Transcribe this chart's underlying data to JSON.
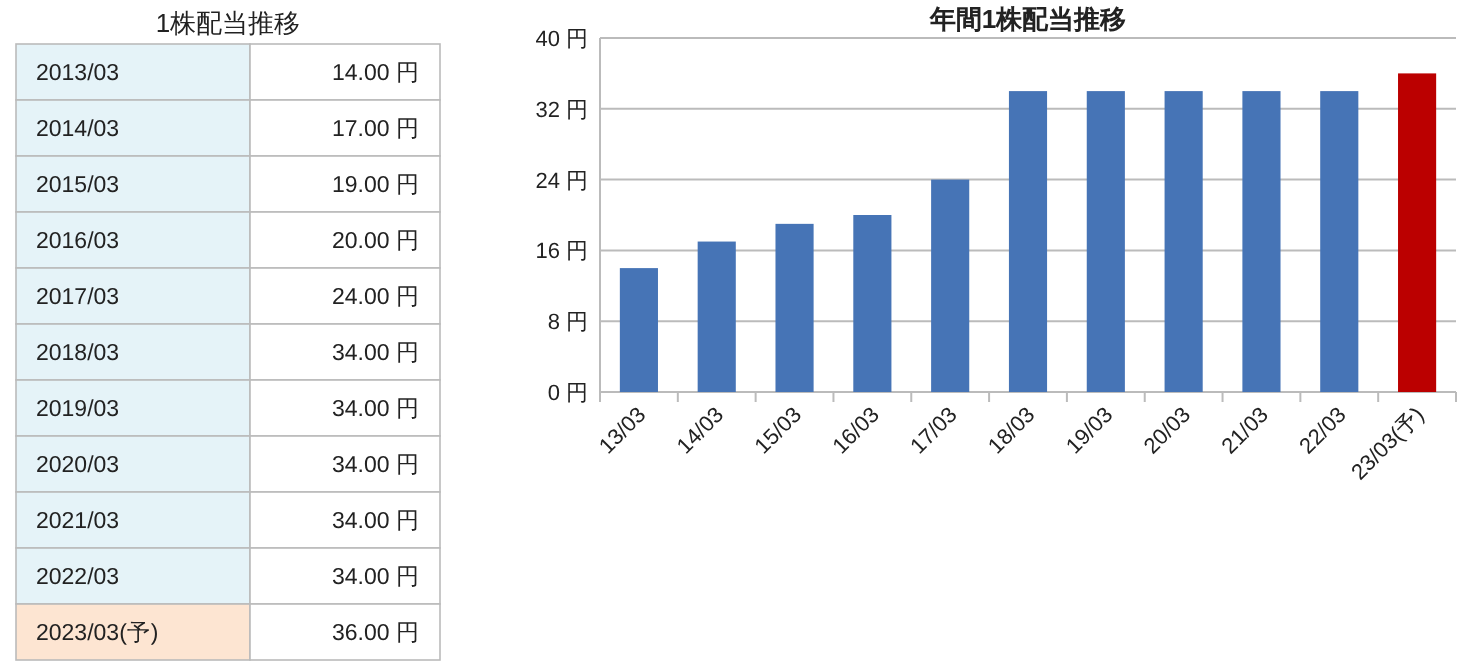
{
  "chart_data": [
    {
      "type": "other",
      "title": "1株配当推移",
      "categories": [
        "2013/03",
        "2014/03",
        "2015/03",
        "2016/03",
        "2017/03",
        "2018/03",
        "2019/03",
        "2020/03",
        "2021/03",
        "2022/03",
        "2023/03(予)"
      ],
      "values": [
        14,
        17,
        19,
        20,
        24,
        34,
        34,
        34,
        34,
        34,
        36
      ],
      "value_labels": [
        "14.00 円",
        "17.00 円",
        "19.00 円",
        "20.00 円",
        "24.00 円",
        "34.00 円",
        "34.00 円",
        "34.00 円",
        "34.00 円",
        "34.00 円",
        "36.00 円"
      ]
    },
    {
      "type": "bar",
      "title": "年間1株配当推移",
      "categories": [
        "13/03",
        "14/03",
        "15/03",
        "16/03",
        "17/03",
        "18/03",
        "19/03",
        "20/03",
        "21/03",
        "22/03",
        "23/03(予)"
      ],
      "values": [
        14,
        17,
        19,
        20,
        24,
        34,
        34,
        34,
        34,
        34,
        36
      ],
      "colors": [
        "#4674b6",
        "#4674b6",
        "#4674b6",
        "#4674b6",
        "#4674b6",
        "#4674b6",
        "#4674b6",
        "#4674b6",
        "#4674b6",
        "#4674b6",
        "#bb0000"
      ],
      "ylim": [
        0,
        40
      ],
      "yticks": [
        {
          "value": 0,
          "label": "0 円"
        },
        {
          "value": 8,
          "label": "8 円"
        },
        {
          "value": 16,
          "label": "16 円"
        },
        {
          "value": 24,
          "label": "24 円"
        },
        {
          "value": 32,
          "label": "32 円"
        },
        {
          "value": 40,
          "label": "40 円"
        }
      ],
      "grid": "y"
    }
  ]
}
